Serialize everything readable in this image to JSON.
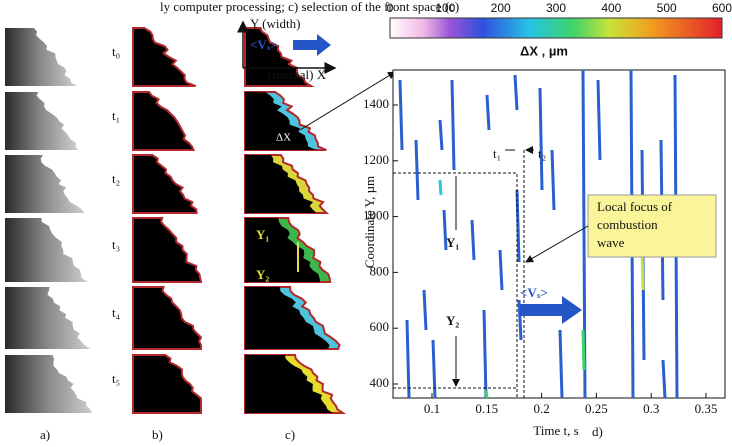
{
  "caption_fragment": "ly computer processing; c) selection of the front space (c)",
  "panels": [
    {
      "label": "a)"
    },
    {
      "label": "b)"
    },
    {
      "label": "c)"
    },
    {
      "label": "d)"
    }
  ],
  "time_labels": [
    "t₀",
    "t₁",
    "t₂",
    "t₃",
    "t₄",
    "t₅"
  ],
  "axes_sketch": {
    "y_axis": "Y (width)",
    "velocity": "<Vₓ>",
    "x_axis": "(normal) X",
    "delta": "ΔX",
    "y1": "Y₁",
    "y2": "Y₂"
  },
  "colorbar": {
    "ticks": [
      0,
      100,
      200,
      300,
      400,
      500,
      600
    ],
    "label": "ΔX   , µm"
  },
  "plot": {
    "y_label": "Coordinate Y, µm",
    "x_label": "Time t, s",
    "yticks": [
      400,
      600,
      800,
      1000,
      1200,
      1400
    ],
    "xticks": [
      0.1,
      0.15,
      0.2,
      0.25,
      0.3,
      0.35
    ],
    "t1": "t₁",
    "t2": "t₂",
    "y1": "Y₁",
    "y2": "Y₂",
    "velocity": "<Vₓ>",
    "callout": [
      "Local focus of",
      "combustion",
      "wave"
    ]
  }
}
